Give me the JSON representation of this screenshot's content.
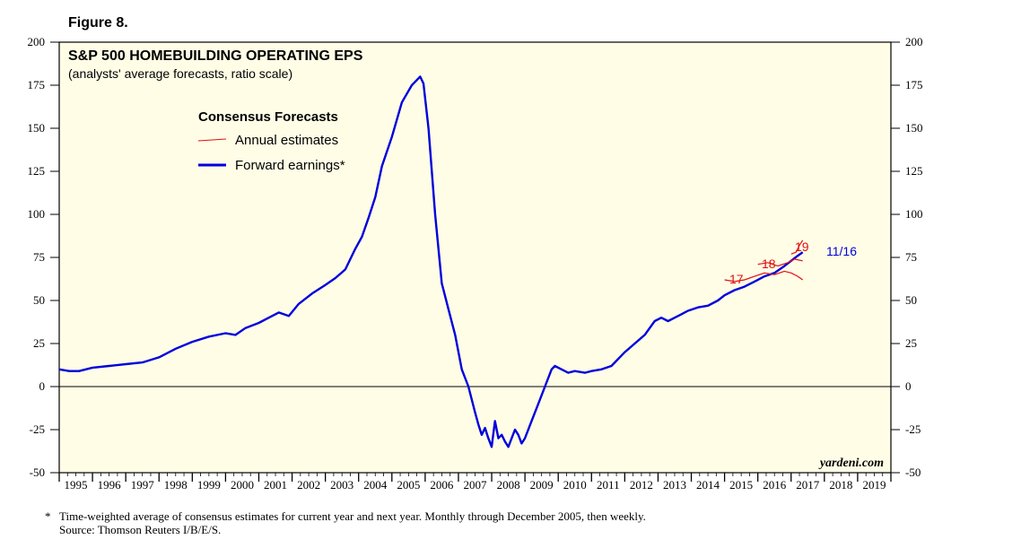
{
  "figure_label": "Figure 8.",
  "watermark": "yardeni.com",
  "footnote": {
    "marker": "*",
    "text": "Time-weighted average of consensus estimates for current year and next year. Monthly through December 2005, then weekly.",
    "source": "Source: Thomson Reuters I/B/E/S."
  },
  "colors": {
    "plot_bg": "#fffde6",
    "forward": "#0000dd",
    "annual": "#e01010",
    "axis": "#000000"
  },
  "chart_data": {
    "type": "line",
    "title": "S&P 500 HOMEBUILDING OPERATING EPS",
    "subtitle": "(analysts' average forecasts, ratio scale)",
    "xlabel": "",
    "ylabel": "",
    "ylim": [
      -50,
      200
    ],
    "xlim": [
      1995,
      2020
    ],
    "yticks": [
      -50,
      -25,
      0,
      25,
      50,
      75,
      100,
      125,
      150,
      175,
      200
    ],
    "xticks": [
      "1995",
      "1996",
      "1997",
      "1998",
      "1999",
      "2000",
      "2001",
      "2002",
      "2003",
      "2004",
      "2005",
      "2006",
      "2007",
      "2008",
      "2009",
      "2010",
      "2011",
      "2012",
      "2013",
      "2014",
      "2015",
      "2016",
      "2017",
      "2018",
      "2019"
    ],
    "legend": {
      "title": "Consensus Forecasts",
      "entries": [
        "Annual estimates",
        "Forward earnings*"
      ],
      "position": "top-left"
    },
    "end_label": "11/16",
    "series": [
      {
        "name": "Forward earnings*",
        "x": [
          1995.0,
          1995.3,
          1995.6,
          1996.0,
          1996.5,
          1997.0,
          1997.5,
          1998.0,
          1998.5,
          1999.0,
          1999.5,
          2000.0,
          2000.3,
          2000.6,
          2001.0,
          2001.3,
          2001.6,
          2001.9,
          2002.2,
          2002.6,
          2003.0,
          2003.3,
          2003.6,
          2003.9,
          2004.1,
          2004.3,
          2004.5,
          2004.7,
          2005.0,
          2005.3,
          2005.6,
          2005.85,
          2005.95,
          2006.1,
          2006.3,
          2006.5,
          2006.7,
          2006.9,
          2007.1,
          2007.3,
          2007.5,
          2007.6,
          2007.7,
          2007.8,
          2007.9,
          2008.0,
          2008.1,
          2008.2,
          2008.3,
          2008.4,
          2008.5,
          2008.6,
          2008.7,
          2008.8,
          2008.9,
          2009.0,
          2009.2,
          2009.4,
          2009.6,
          2009.8,
          2009.9,
          2010.1,
          2010.3,
          2010.5,
          2010.8,
          2011.0,
          2011.3,
          2011.6,
          2012.0,
          2012.3,
          2012.6,
          2012.9,
          2013.1,
          2013.3,
          2013.5,
          2013.7,
          2013.9,
          2014.2,
          2014.5,
          2014.8,
          2015.0,
          2015.3,
          2015.6,
          2015.9,
          2016.2,
          2016.5,
          2016.8,
          2017.0,
          2017.2,
          2017.35
        ],
        "values": [
          10,
          9,
          9,
          11,
          12,
          13,
          14,
          17,
          22,
          26,
          29,
          31,
          30,
          34,
          37,
          40,
          43,
          41,
          48,
          54,
          59,
          63,
          68,
          80,
          87,
          98,
          110,
          128,
          145,
          165,
          175,
          180,
          176,
          150,
          100,
          60,
          45,
          30,
          10,
          0,
          -15,
          -22,
          -28,
          -24,
          -30,
          -35,
          -20,
          -30,
          -28,
          -32,
          -35,
          -30,
          -25,
          -28,
          -33,
          -30,
          -20,
          -10,
          0,
          10,
          12,
          10,
          8,
          9,
          8,
          9,
          10,
          12,
          20,
          25,
          30,
          38,
          40,
          38,
          40,
          42,
          44,
          46,
          47,
          50,
          53,
          56,
          58,
          61,
          64,
          66,
          70,
          73,
          76,
          78
        ]
      },
      {
        "name": "17",
        "x": [
          2015.0,
          2015.3,
          2015.6,
          2015.9,
          2016.2,
          2016.5,
          2016.8,
          2017.0,
          2017.2,
          2017.35
        ],
        "values": [
          62,
          61,
          62,
          64,
          66,
          65,
          67,
          66,
          64,
          62
        ]
      },
      {
        "name": "18",
        "x": [
          2016.0,
          2016.3,
          2016.6,
          2016.9,
          2017.1,
          2017.35
        ],
        "values": [
          71,
          72,
          70,
          72,
          74,
          73
        ]
      },
      {
        "name": "19",
        "x": [
          2017.0,
          2017.15,
          2017.25,
          2017.35
        ],
        "values": [
          77,
          78,
          82,
          85
        ]
      }
    ]
  }
}
